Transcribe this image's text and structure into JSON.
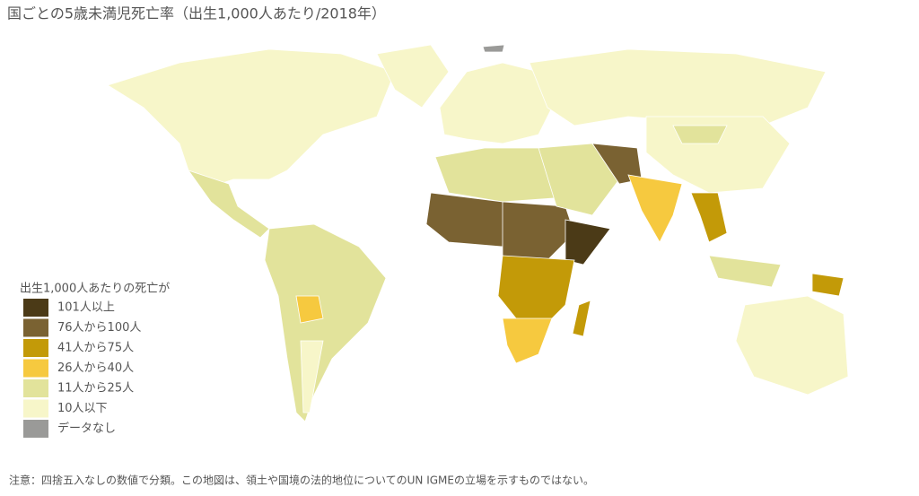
{
  "title": "国ごとの5歳未満児死亡率（出生1,000人あたり/2018年）",
  "legend": {
    "title": "出生1,000人あたりの死亡が",
    "items": [
      {
        "label": "101人以上",
        "color": "#4b3a17"
      },
      {
        "label": "76人から100人",
        "color": "#7a6232"
      },
      {
        "label": "41人から75人",
        "color": "#c39a08"
      },
      {
        "label": "26人から40人",
        "color": "#f6c93f"
      },
      {
        "label": "11人から25人",
        "color": "#e2e39b"
      },
      {
        "label": "10人以下",
        "color": "#f7f6c9"
      },
      {
        "label": "データなし",
        "color": "#9a9a98"
      }
    ]
  },
  "note": "注意：四捨五入なしの数値で分類。この地図は、領土や国境の法的地位についてのUN IGMEの立場を示すものではない。"
}
